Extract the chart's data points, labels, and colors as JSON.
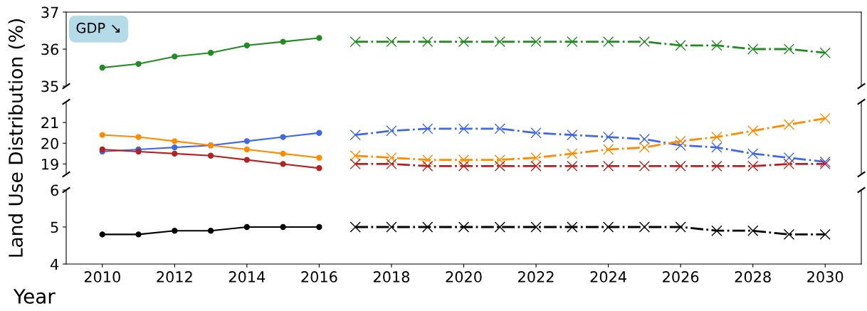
{
  "chart_data": [
    {
      "type": "line",
      "xlim": [
        2009,
        2031
      ],
      "ylim": [
        35,
        37
      ],
      "yticks": [
        35,
        36,
        37
      ],
      "tick_labels": "y",
      "grid": false,
      "annotations": [
        "GDP ↘"
      ],
      "series": [
        {
          "color": "#228b22",
          "x": [
            2010,
            2011,
            2012,
            2013,
            2014,
            2015,
            2016
          ],
          "values": [
            35.5,
            35.6,
            35.8,
            35.9,
            36.1,
            36.2,
            36.3
          ],
          "marker": "circle",
          "line_style": "solid"
        },
        {
          "color": "#228b22",
          "x": [
            2017,
            2018,
            2019,
            2020,
            2021,
            2022,
            2023,
            2024,
            2025,
            2026,
            2027,
            2028,
            2029,
            2030
          ],
          "values": [
            36.2,
            36.2,
            36.2,
            36.2,
            36.2,
            36.2,
            36.2,
            36.2,
            36.2,
            36.1,
            36.1,
            36.0,
            36.0,
            35.9
          ],
          "marker": "cross",
          "line_style": "dashdot"
        }
      ]
    },
    {
      "type": "line",
      "xlim": [
        2009,
        2031
      ],
      "ylim": [
        18.5,
        22
      ],
      "yticks": [
        19,
        20,
        21
      ],
      "tick_labels": "y",
      "grid": false,
      "ylabel": "Land Use Distribution (%)",
      "series": [
        {
          "color": "#4169e1",
          "x": [
            2010,
            2011,
            2012,
            2013,
            2014,
            2015,
            2016
          ],
          "values": [
            19.6,
            19.7,
            19.8,
            19.9,
            20.1,
            20.3,
            20.5
          ],
          "marker": "circle",
          "line_style": "solid"
        },
        {
          "color": "#ff8c00",
          "x": [
            2010,
            2011,
            2012,
            2013,
            2014,
            2015,
            2016
          ],
          "values": [
            20.4,
            20.3,
            20.1,
            19.9,
            19.7,
            19.5,
            19.3
          ],
          "marker": "circle",
          "line_style": "solid"
        },
        {
          "color": "#b22222",
          "x": [
            2010,
            2011,
            2012,
            2013,
            2014,
            2015,
            2016
          ],
          "values": [
            19.7,
            19.6,
            19.5,
            19.4,
            19.2,
            19.0,
            18.8
          ],
          "marker": "circle",
          "line_style": "solid"
        },
        {
          "color": "#4169e1",
          "x": [
            2017,
            2018,
            2019,
            2020,
            2021,
            2022,
            2023,
            2024,
            2025,
            2026,
            2027,
            2028,
            2029,
            2030
          ],
          "values": [
            20.4,
            20.6,
            20.7,
            20.7,
            20.7,
            20.5,
            20.4,
            20.3,
            20.2,
            19.9,
            19.8,
            19.5,
            19.3,
            19.1
          ],
          "marker": "cross",
          "line_style": "dashdot"
        },
        {
          "color": "#ff8c00",
          "x": [
            2017,
            2018,
            2019,
            2020,
            2021,
            2022,
            2023,
            2024,
            2025,
            2026,
            2027,
            2028,
            2029,
            2030
          ],
          "values": [
            19.4,
            19.3,
            19.2,
            19.2,
            19.2,
            19.3,
            19.5,
            19.7,
            19.8,
            20.1,
            20.3,
            20.6,
            20.9,
            21.2
          ],
          "marker": "cross",
          "line_style": "dashdot"
        },
        {
          "color": "#b22222",
          "x": [
            2017,
            2018,
            2019,
            2020,
            2021,
            2022,
            2023,
            2024,
            2025,
            2026,
            2027,
            2028,
            2029,
            2030
          ],
          "values": [
            19.0,
            19.0,
            18.9,
            18.9,
            18.9,
            18.9,
            18.9,
            18.9,
            18.9,
            18.9,
            18.9,
            18.9,
            19.0,
            19.0
          ],
          "marker": "cross",
          "line_style": "dashdot"
        }
      ]
    },
    {
      "type": "line",
      "xlim": [
        2009,
        2031
      ],
      "xticks": [
        2010,
        2012,
        2014,
        2016,
        2018,
        2020,
        2022,
        2024,
        2026,
        2028,
        2030
      ],
      "ylim": [
        4,
        6
      ],
      "yticks": [
        4,
        5,
        6
      ],
      "grid": false,
      "xlabel": "Year",
      "series": [
        {
          "color": "#000000",
          "x": [
            2010,
            2011,
            2012,
            2013,
            2014,
            2015,
            2016
          ],
          "values": [
            4.8,
            4.8,
            4.9,
            4.9,
            5.0,
            5.0,
            5.0
          ],
          "marker": "circle",
          "line_style": "solid"
        },
        {
          "color": "#000000",
          "x": [
            2017,
            2018,
            2019,
            2020,
            2021,
            2022,
            2023,
            2024,
            2025,
            2026,
            2027,
            2028,
            2029,
            2030
          ],
          "values": [
            5.0,
            5.0,
            5.0,
            5.0,
            5.0,
            5.0,
            5.0,
            5.0,
            5.0,
            5.0,
            4.9,
            4.9,
            4.8,
            4.8
          ],
          "marker": "cross",
          "line_style": "dashdot"
        }
      ]
    }
  ]
}
